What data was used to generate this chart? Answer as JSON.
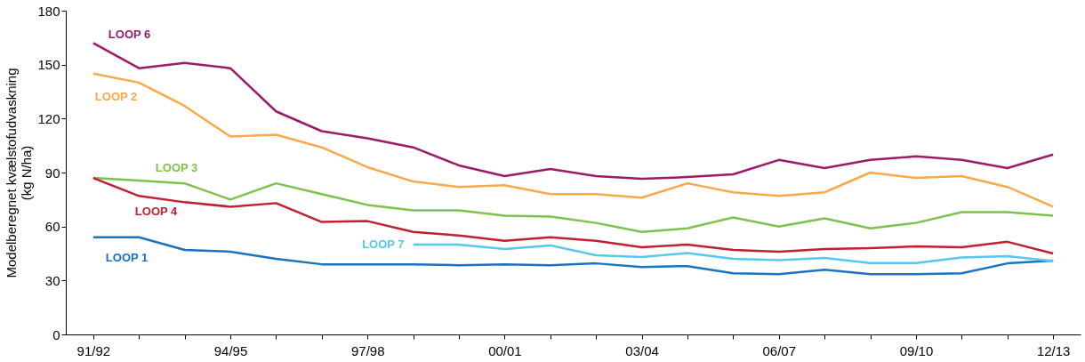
{
  "chart_data": {
    "type": "line",
    "ylabel": "Modelberegnet kvælstofudvaskning\n(kg N/ha)",
    "categories": [
      "91/92",
      null,
      null,
      "94/95",
      null,
      null,
      "97/98",
      null,
      null,
      "00/01",
      null,
      null,
      "03/04",
      null,
      null,
      "06/07",
      null,
      null,
      "09/10",
      null,
      null,
      "12/13"
    ],
    "ylim": [
      0,
      180
    ],
    "yticks": [
      0,
      30,
      60,
      90,
      120,
      150,
      180
    ],
    "grid": false,
    "legend": false,
    "marker": "none",
    "line_style": "solid",
    "series": [
      {
        "name": "LOOP 6",
        "color": "#9b1b6a",
        "values": [
          162,
          148,
          151,
          148,
          124,
          113,
          109,
          104,
          94,
          88,
          92,
          88,
          86.5,
          87.5,
          89,
          97,
          92.5,
          97,
          99,
          97,
          92.5,
          100
        ]
      },
      {
        "name": "LOOP 2",
        "color": "#f9a84a",
        "values": [
          145,
          140,
          127,
          110,
          111,
          104,
          93,
          85,
          82,
          83,
          78,
          78,
          76,
          84,
          79,
          77,
          79,
          90,
          87,
          88,
          82,
          71
        ]
      },
      {
        "name": "LOOP 3",
        "color": "#7dc24b",
        "values": [
          87,
          85.5,
          84,
          75,
          84,
          78,
          72,
          69,
          69,
          66,
          65.5,
          62,
          57,
          59,
          65,
          60,
          64.5,
          59,
          62,
          68,
          68,
          66
        ]
      },
      {
        "name": "LOOP 4",
        "color": "#c0202f",
        "values": [
          87,
          77,
          73.5,
          71,
          73,
          62.5,
          63,
          57,
          55,
          52,
          54,
          52,
          48.5,
          50,
          47,
          46,
          47.5,
          48,
          49,
          48.5,
          51.5,
          45
        ]
      },
      {
        "name": "LOOP 1",
        "color": "#1a73c0",
        "values": [
          54,
          54,
          47,
          46,
          42,
          39,
          39,
          39,
          38.5,
          39,
          38.5,
          39.5,
          37.5,
          38,
          34,
          33.5,
          36,
          33.5,
          33.5,
          34,
          39.5,
          41
        ]
      },
      {
        "name": "LOOP 7",
        "color": "#56c7ef",
        "values": [
          null,
          null,
          null,
          null,
          null,
          null,
          null,
          50,
          50,
          47.5,
          49.5,
          44,
          43,
          45.3,
          42,
          41.3,
          42.5,
          39.7,
          39.7,
          42.8,
          43.5,
          40.8
        ]
      }
    ]
  }
}
